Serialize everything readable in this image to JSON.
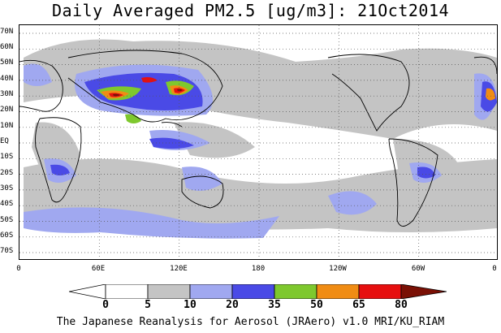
{
  "title": "Daily Averaged PM2.5 [ug/m3]: 21Oct2014",
  "footer": "The Japanese Reanalysis for Aerosol (JRAero) v1.0 MRI/KU_RIAM",
  "lat_labels": [
    "70N",
    "60N",
    "50N",
    "40N",
    "30N",
    "20N",
    "10N",
    "EQ",
    "10S",
    "20S",
    "30S",
    "40S",
    "50S",
    "60S",
    "70S"
  ],
  "lon_labels": [
    "0",
    "60E",
    "120E",
    "180",
    "120W",
    "60W",
    "0"
  ],
  "colorbar": {
    "ticks": [
      "0",
      "5",
      "10",
      "20",
      "35",
      "50",
      "65",
      "80"
    ],
    "colors": [
      "#ffffff",
      "#c4c4c4",
      "#a0a8f0",
      "#4a4ae6",
      "#7ec82e",
      "#f08c14",
      "#e60f0f",
      "#7a1005"
    ]
  },
  "map": {
    "projection": "equirectangular",
    "lon_range": [
      0,
      360
    ],
    "lat_range": [
      -75,
      75
    ],
    "grid": "dotted"
  }
}
